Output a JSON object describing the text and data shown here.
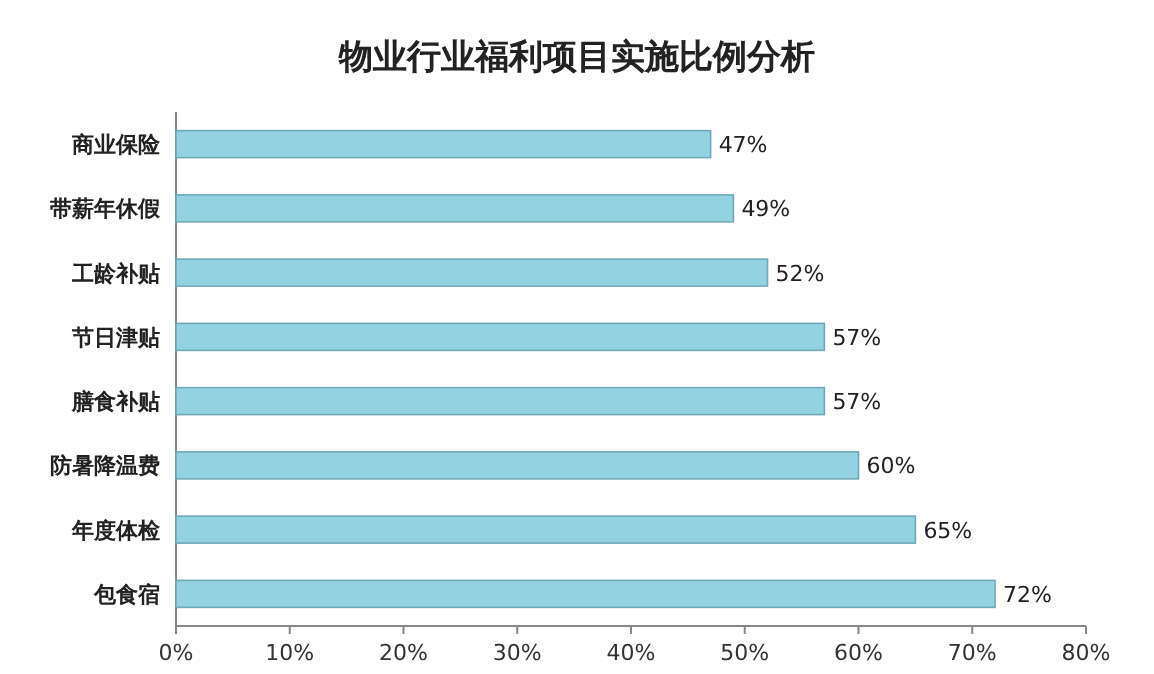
{
  "chart_data": {
    "type": "bar",
    "orientation": "horizontal",
    "title": "物业行业福利项目实施比例分析",
    "categories": [
      "商业保险",
      "带薪年休假",
      "工龄补贴",
      "节日津贴",
      "膳食补贴",
      "防暑降温费",
      "年度体检",
      "包食宿"
    ],
    "values": [
      47,
      49,
      52,
      57,
      57,
      60,
      65,
      72
    ],
    "value_labels": [
      "47%",
      "49%",
      "52%",
      "57%",
      "57%",
      "60%",
      "65%",
      "72%"
    ],
    "color": "#93d2e0",
    "xlim": [
      0,
      80
    ],
    "xticks": [
      {
        "value": 0,
        "label": "0%"
      },
      {
        "value": 10,
        "label": "10%"
      },
      {
        "value": 20,
        "label": "20%"
      },
      {
        "value": 30,
        "label": "30%"
      },
      {
        "value": 40,
        "label": "40%"
      },
      {
        "value": 50,
        "label": "50%"
      },
      {
        "value": 60,
        "label": "60%"
      },
      {
        "value": 70,
        "label": "70%"
      },
      {
        "value": 80,
        "label": "80%"
      }
    ]
  }
}
